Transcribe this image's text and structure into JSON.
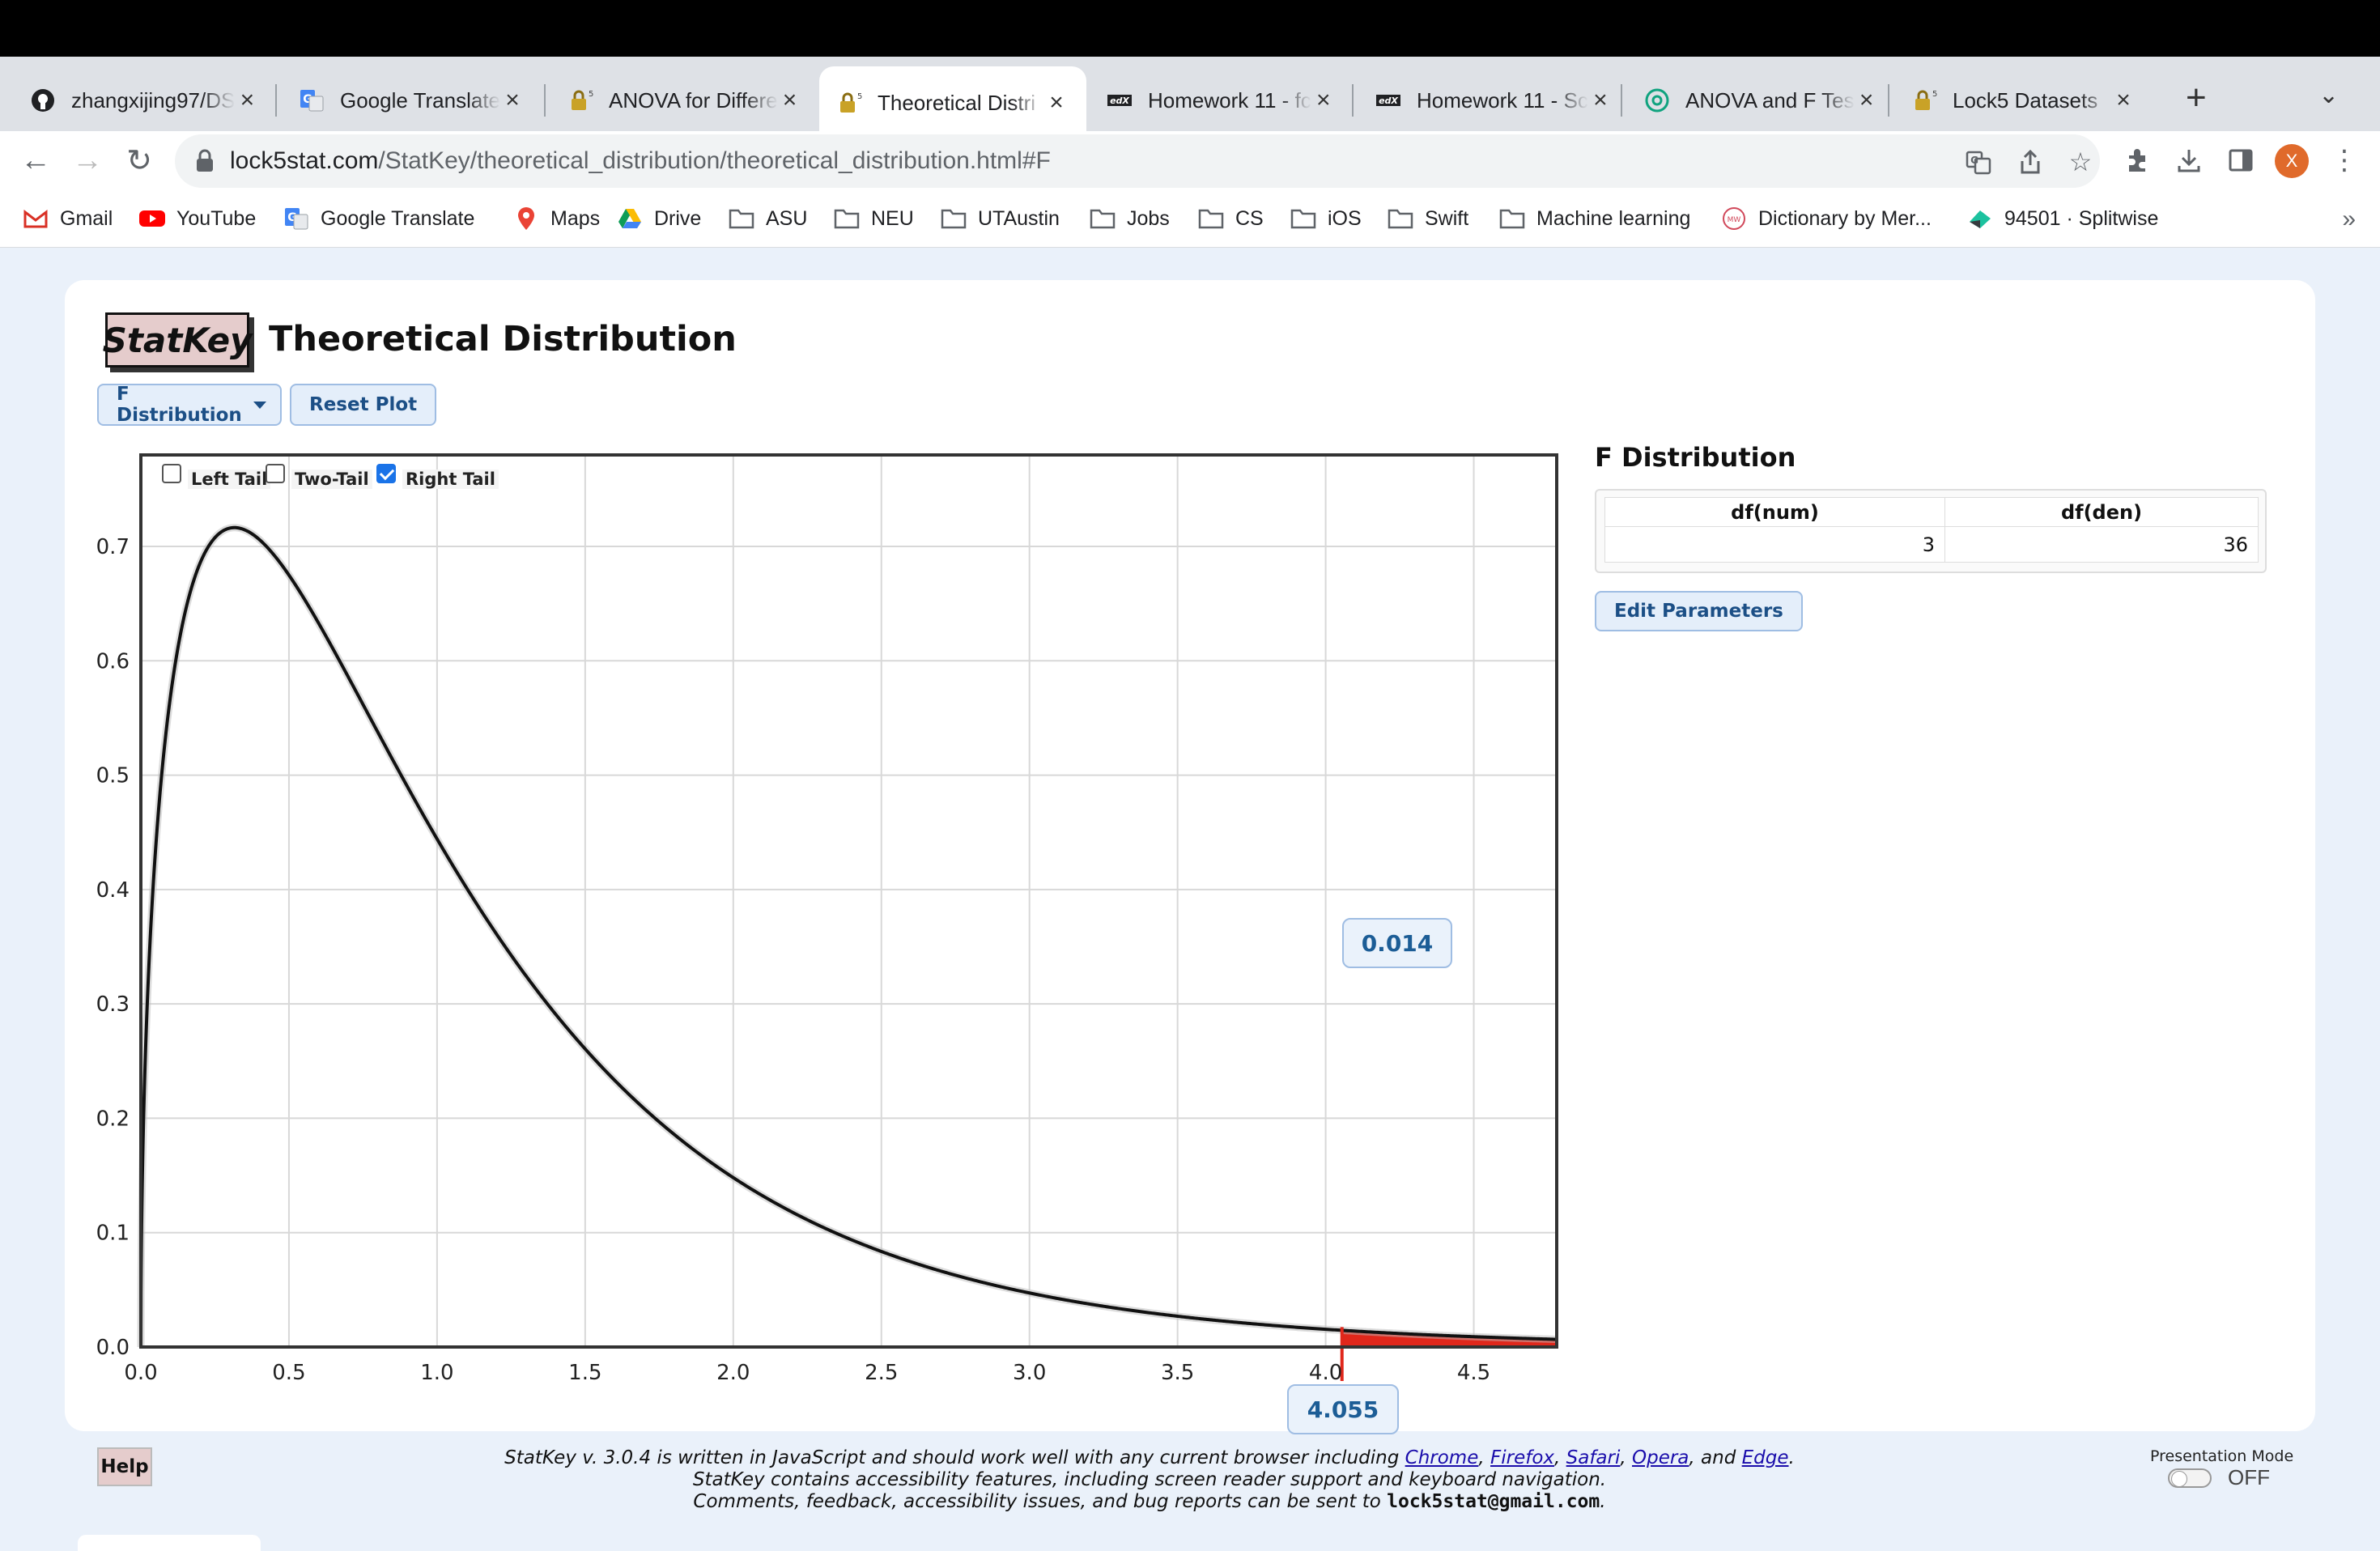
{
  "browser": {
    "tabs": [
      {
        "title": "zhangxijing97/DS",
        "icon": "github-icon",
        "active": false
      },
      {
        "title": "Google Translate",
        "icon": "google-translate-icon",
        "active": false
      },
      {
        "title": "ANOVA for Differe",
        "icon": "lock5-icon",
        "active": false
      },
      {
        "title": "Theoretical Distri",
        "icon": "lock5-icon",
        "active": true
      },
      {
        "title": "Homework 11 - fc",
        "icon": "edx-icon",
        "active": false
      },
      {
        "title": "Homework 11 - Sc",
        "icon": "edx-icon",
        "active": false
      },
      {
        "title": "ANOVA and F Tes",
        "icon": "chatgpt-icon",
        "active": false
      },
      {
        "title": "Lock5 Datasets",
        "icon": "lock5-icon",
        "active": false
      }
    ],
    "url_host": "lock5stat.com",
    "url_path": "/StatKey/theoretical_distribution/theoretical_distribution.html#F",
    "profile_initial": "X",
    "bookmarks": [
      {
        "label": "Gmail",
        "icon": "gmail-icon"
      },
      {
        "label": "YouTube",
        "icon": "youtube-icon"
      },
      {
        "label": "Google Translate",
        "icon": "google-translate-icon"
      },
      {
        "label": "Maps",
        "icon": "maps-icon"
      },
      {
        "label": "Drive",
        "icon": "drive-icon"
      },
      {
        "label": "ASU",
        "icon": "folder-icon"
      },
      {
        "label": "NEU",
        "icon": "folder-icon"
      },
      {
        "label": "UTAustin",
        "icon": "folder-icon"
      },
      {
        "label": "Jobs",
        "icon": "folder-icon"
      },
      {
        "label": "CS",
        "icon": "folder-icon"
      },
      {
        "label": "iOS",
        "icon": "folder-icon"
      },
      {
        "label": "Swift",
        "icon": "folder-icon"
      },
      {
        "label": "Machine learning",
        "icon": "folder-icon"
      },
      {
        "label": "Dictionary by Mer...",
        "icon": "merriam-webster-icon"
      },
      {
        "label": "94501 · Splitwise",
        "icon": "splitwise-icon"
      }
    ],
    "bookmarks_overflow": "»"
  },
  "app": {
    "logo": "StatKey",
    "title": "Theoretical Distribution",
    "distribution_select": "F Distribution",
    "reset_label": "Reset Plot"
  },
  "tails": {
    "left": {
      "label": "Left Tail",
      "checked": false
    },
    "two": {
      "label": "Two-Tail",
      "checked": false
    },
    "right": {
      "label": "Right Tail",
      "checked": true
    }
  },
  "chart_data": {
    "type": "area",
    "title": "",
    "xlabel": "",
    "ylabel": "",
    "xlim": [
      0,
      4.78
    ],
    "ylim": [
      0,
      0.78
    ],
    "xticks": [
      "0.0",
      "0.5",
      "1.0",
      "1.5",
      "2.0",
      "2.5",
      "3.0",
      "3.5",
      "4.0",
      "4.5"
    ],
    "yticks": [
      "0.0",
      "0.1",
      "0.2",
      "0.3",
      "0.4",
      "0.5",
      "0.6",
      "0.7"
    ],
    "grid": true,
    "distribution": "F",
    "df_num": 3,
    "df_den": 36,
    "shaded_tail": "right",
    "critical_value": "4.055",
    "tail_probability": "0.014",
    "curve_color": "#111111",
    "shade_color": "#e0271b"
  },
  "side": {
    "heading": "F Distribution",
    "col_num": "df(num)",
    "col_den": "df(den)",
    "val_num": "3",
    "val_den": "36",
    "edit_label": "Edit Parameters"
  },
  "footer": {
    "help": "Help",
    "line1_prefix": "StatKey v. 3.0.4 is written in JavaScript and should work well with any current browser including ",
    "browsers": [
      "Chrome",
      "Firefox",
      "Safari",
      "Opera"
    ],
    "and_text": ", and ",
    "last_browser": "Edge",
    "line2": "StatKey contains accessibility features, including screen reader support and keyboard navigation.",
    "line3_prefix": "Comments, feedback, accessibility issues, and bug reports can be sent to ",
    "email": "lock5stat@gmail.com",
    "presentation_label": "Presentation Mode",
    "presentation_state": "OFF"
  }
}
